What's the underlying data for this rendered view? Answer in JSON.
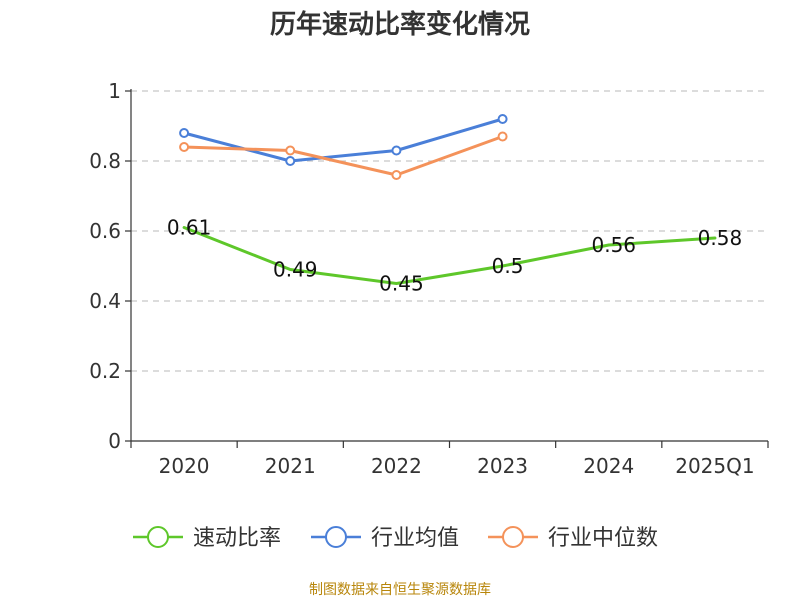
{
  "chart_data": {
    "type": "line",
    "title": "历年速动比率变化情况",
    "categories": [
      "2020",
      "2021",
      "2022",
      "2023",
      "2024",
      "2025Q1"
    ],
    "ylim": [
      0,
      1
    ],
    "yticks": [
      0,
      0.2,
      0.4,
      0.6,
      0.8,
      1
    ],
    "ytick_labels": [
      "0",
      "0.2",
      "0.4",
      "0.6",
      "0.8",
      "1"
    ],
    "grid": true,
    "legend_position": "bottom",
    "series": [
      {
        "name": "速动比率",
        "color": "#5ec72a",
        "values": [
          0.61,
          0.49,
          0.45,
          0.5,
          0.56,
          0.58
        ],
        "labels": [
          "0.61",
          "0.49",
          "0.45",
          "0.5",
          "0.56",
          "0.58"
        ],
        "show_markers": false,
        "show_labels": true
      },
      {
        "name": "行业均值",
        "color": "#4a7fd8",
        "values": [
          0.88,
          0.8,
          0.83,
          0.92,
          null,
          null
        ],
        "show_markers": true,
        "show_labels": false
      },
      {
        "name": "行业中位数",
        "color": "#f4925a",
        "values": [
          0.84,
          0.83,
          0.76,
          0.87,
          null,
          null
        ],
        "show_markers": true,
        "show_labels": false
      }
    ],
    "source": "制图数据来自恒生聚源数据库"
  }
}
